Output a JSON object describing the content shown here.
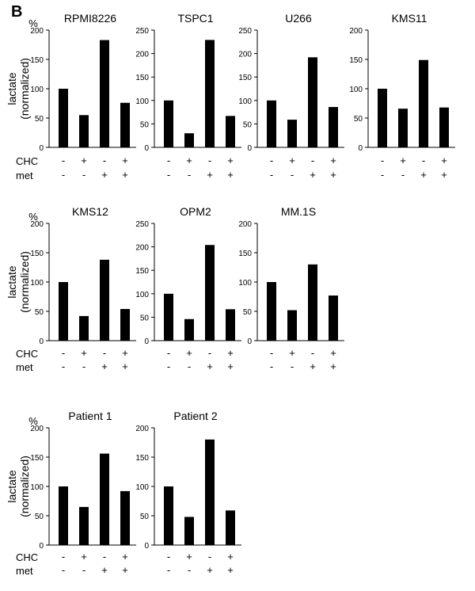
{
  "figure": {
    "panel_label": "B",
    "conditions": {
      "CHC": [
        "-",
        "+",
        "-",
        "+"
      ],
      "met": [
        "-",
        "-",
        "+",
        "+"
      ],
      "CHC_label": "CHC",
      "met_label": "met"
    },
    "unit_label": "%",
    "ylabel_line1": "lactate",
    "ylabel_line2": "(normalized)"
  },
  "chart_data": [
    {
      "type": "bar",
      "title": "RPMI8226",
      "categories": [
        "CHC-/met-",
        "CHC+/met-",
        "CHC-/met+",
        "CHC+/met+"
      ],
      "values": [
        100,
        55,
        183,
        76
      ],
      "ylim": [
        0,
        200
      ],
      "yticks": [
        0,
        50,
        100,
        150,
        200
      ],
      "ylabel": "lactate (normalized)"
    },
    {
      "type": "bar",
      "title": "TSPC1",
      "categories": [
        "CHC-/met-",
        "CHC+/met-",
        "CHC-/met+",
        "CHC+/met+"
      ],
      "values": [
        100,
        30,
        229,
        67
      ],
      "ylim": [
        0,
        250
      ],
      "yticks": [
        0,
        50,
        100,
        150,
        200,
        250
      ]
    },
    {
      "type": "bar",
      "title": "U266",
      "categories": [
        "CHC-/met-",
        "CHC+/met-",
        "CHC-/met+",
        "CHC+/met+"
      ],
      "values": [
        100,
        59,
        192,
        86
      ],
      "ylim": [
        0,
        250
      ],
      "yticks": [
        0,
        50,
        100,
        150,
        200,
        250
      ]
    },
    {
      "type": "bar",
      "title": "KMS11",
      "categories": [
        "CHC-/met-",
        "CHC+/met-",
        "CHC-/met+",
        "CHC+/met+"
      ],
      "values": [
        100,
        66,
        149,
        68
      ],
      "ylim": [
        0,
        200
      ],
      "yticks": [
        0,
        50,
        100,
        150,
        200
      ]
    },
    {
      "type": "bar",
      "title": "KMS12",
      "categories": [
        "CHC-/met-",
        "CHC+/met-",
        "CHC-/met+",
        "CHC+/met+"
      ],
      "values": [
        100,
        42,
        138,
        54
      ],
      "ylim": [
        0,
        200
      ],
      "yticks": [
        0,
        50,
        100,
        150,
        200
      ],
      "ylabel": "lactate (normalized)"
    },
    {
      "type": "bar",
      "title": "OPM2",
      "categories": [
        "CHC-/met-",
        "CHC+/met-",
        "CHC-/met+",
        "CHC+/met+"
      ],
      "values": [
        100,
        46,
        204,
        67
      ],
      "ylim": [
        0,
        250
      ],
      "yticks": [
        0,
        50,
        100,
        150,
        200,
        250
      ]
    },
    {
      "type": "bar",
      "title": "MM.1S",
      "categories": [
        "CHC-/met-",
        "CHC+/met-",
        "CHC-/met+",
        "CHC+/met+"
      ],
      "values": [
        100,
        52,
        130,
        77
      ],
      "ylim": [
        0,
        200
      ],
      "yticks": [
        0,
        50,
        100,
        150,
        200
      ]
    },
    {
      "type": "bar",
      "title": "Patient 1",
      "categories": [
        "CHC-/met-",
        "CHC+/met-",
        "CHC-/met+",
        "CHC+/met+"
      ],
      "values": [
        100,
        65,
        156,
        92
      ],
      "ylim": [
        0,
        200
      ],
      "yticks": [
        0,
        50,
        100,
        150,
        200
      ],
      "ylabel": "lactate (normalized)"
    },
    {
      "type": "bar",
      "title": "Patient 2",
      "categories": [
        "CHC-/met-",
        "CHC+/met-",
        "CHC-/met+",
        "CHC+/met+"
      ],
      "values": [
        100,
        48,
        180,
        59
      ],
      "ylim": [
        0,
        200
      ],
      "yticks": [
        0,
        50,
        100,
        150,
        200
      ]
    }
  ]
}
